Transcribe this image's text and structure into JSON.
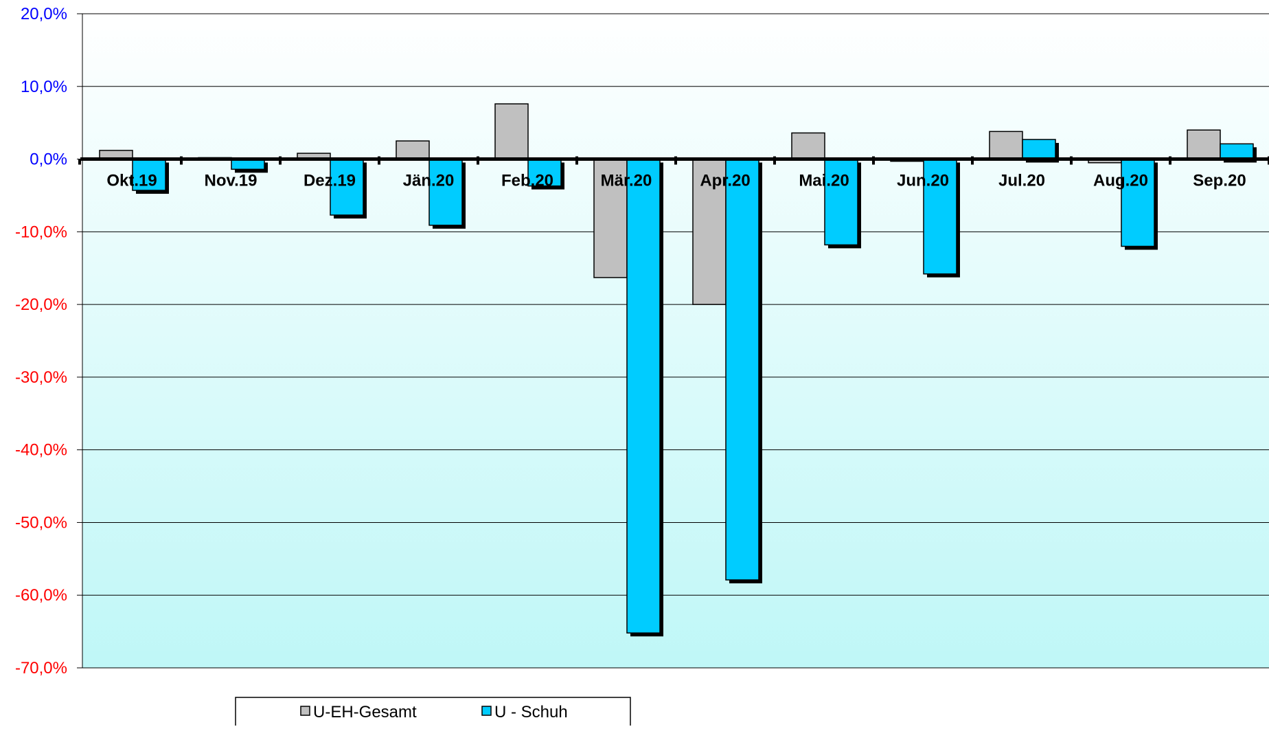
{
  "chart_data": {
    "type": "bar",
    "title": "",
    "xlabel": "",
    "ylabel": "",
    "categories": [
      "Okt.19",
      "Nov.19",
      "Dez.19",
      "Jän.20",
      "Feb.20",
      "Mär.20",
      "Apr.20",
      "Mai.20",
      "Jun.20",
      "Jul.20",
      "Aug.20",
      "Sep.20"
    ],
    "series": [
      {
        "name": "U-EH-Gesamt",
        "color": "#c0c0c0",
        "values": [
          1.2,
          0.2,
          0.8,
          2.5,
          7.6,
          -16.3,
          -20.0,
          3.6,
          -0.3,
          3.8,
          -0.5,
          4.0
        ]
      },
      {
        "name": "U - Schuh",
        "color": "#00ccff",
        "values": [
          -4.3,
          -1.4,
          -7.7,
          -9.1,
          -3.7,
          -65.2,
          -57.9,
          -11.8,
          -15.8,
          2.7,
          -12.0,
          2.1
        ]
      }
    ],
    "ylim": [
      -70,
      20
    ],
    "ytick_values": [
      20,
      10,
      0,
      -10,
      -20,
      -30,
      -40,
      -50,
      -60,
      -70
    ],
    "ytick_labels": [
      "20,0%",
      "10,0%",
      "0,0%",
      "-10,0%",
      "-20,0%",
      "-30,0%",
      "-40,0%",
      "-50,0%",
      "-60,0%",
      "-70,0%"
    ],
    "positive_tick_color": "#0000ff",
    "negative_tick_color": "#ff0000",
    "grid": true,
    "legend_position": "bottom"
  }
}
